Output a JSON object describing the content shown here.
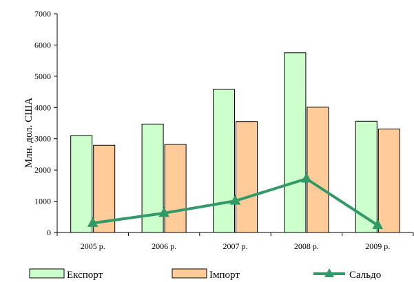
{
  "chart_data": {
    "type": "bar",
    "categories": [
      "2005 р.",
      "2006 р.",
      "2007 р.",
      "2008 р.",
      "2009 р."
    ],
    "series": [
      {
        "name": "Експорт",
        "kind": "bar",
        "color": "#ccffcc",
        "values": [
          3100,
          3470,
          4580,
          5750,
          3560
        ]
      },
      {
        "name": "Імпорт",
        "kind": "bar",
        "color": "#ffcc99",
        "values": [
          2790,
          2820,
          3550,
          4010,
          3310
        ]
      },
      {
        "name": "Сальдо",
        "kind": "line",
        "color": "#339966",
        "values": [
          300,
          620,
          1010,
          1720,
          230
        ]
      }
    ],
    "ylabel": "Млн. дол. США",
    "ylim": [
      0,
      7000
    ],
    "yticks": [
      0,
      1000,
      2000,
      3000,
      4000,
      5000,
      6000,
      7000
    ],
    "grid": false,
    "legend_position": "bottom"
  }
}
